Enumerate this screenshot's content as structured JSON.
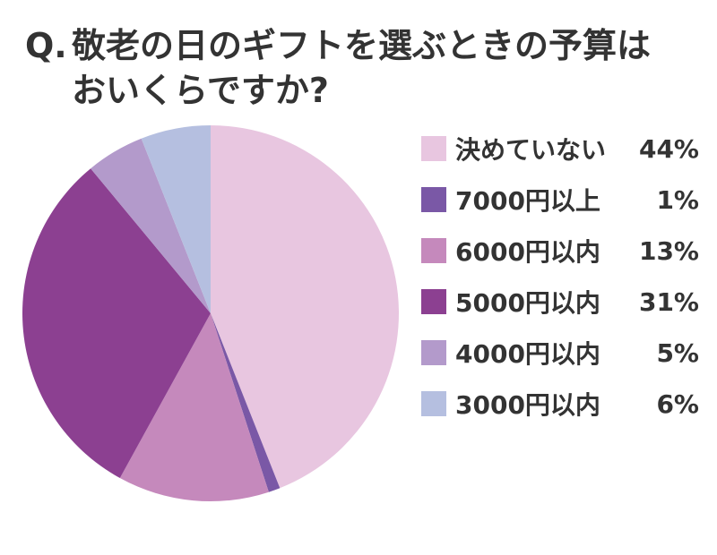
{
  "title": {
    "prefix": "Q.",
    "line1": "敬老の日のギフトを選ぶときの予算は",
    "line2": "おいくらですか?"
  },
  "chart_data": {
    "type": "pie",
    "title": "Q. 敬老の日のギフトを選ぶときの予算はおいくらですか?",
    "start": "12 o'clock, clockwise",
    "legend_position": "right",
    "series": [
      {
        "name": "決めていない",
        "value": 44,
        "label": "44%",
        "color": "#e8c6e0"
      },
      {
        "name": "7000円以上",
        "value": 1,
        "label": "1%",
        "color": "#7a58a6"
      },
      {
        "name": "6000円以内",
        "value": 13,
        "label": "13%",
        "color": "#c589bc"
      },
      {
        "name": "5000円以内",
        "value": 31,
        "label": "31%",
        "color": "#8c4091"
      },
      {
        "name": "4000円以内",
        "value": 5,
        "label": "5%",
        "color": "#b39acb"
      },
      {
        "name": "3000円以内",
        "value": 6,
        "label": "6%",
        "color": "#b5bfe0"
      }
    ]
  }
}
